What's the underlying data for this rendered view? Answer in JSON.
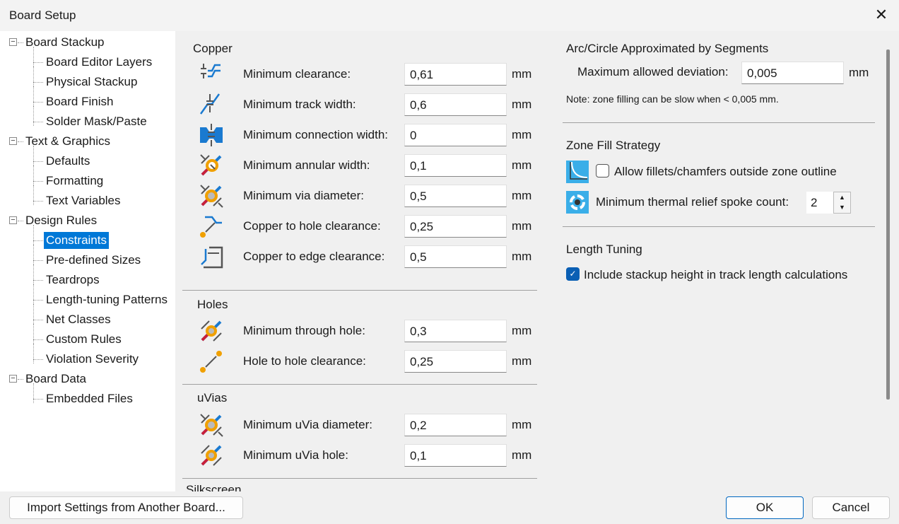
{
  "window": {
    "title": "Board Setup"
  },
  "tree": [
    {
      "label": "Board Stackup",
      "level": 0
    },
    {
      "label": "Board Editor Layers",
      "level": 1
    },
    {
      "label": "Physical Stackup",
      "level": 1
    },
    {
      "label": "Board Finish",
      "level": 1
    },
    {
      "label": "Solder Mask/Paste",
      "level": 1
    },
    {
      "label": "Text & Graphics",
      "level": 0
    },
    {
      "label": "Defaults",
      "level": 1
    },
    {
      "label": "Formatting",
      "level": 1
    },
    {
      "label": "Text Variables",
      "level": 1
    },
    {
      "label": "Design Rules",
      "level": 0
    },
    {
      "label": "Constraints",
      "level": 1,
      "selected": true
    },
    {
      "label": "Pre-defined Sizes",
      "level": 1
    },
    {
      "label": "Teardrops",
      "level": 1
    },
    {
      "label": "Length-tuning Patterns",
      "level": 1
    },
    {
      "label": "Net Classes",
      "level": 1
    },
    {
      "label": "Custom Rules",
      "level": 1
    },
    {
      "label": "Violation Severity",
      "level": 1
    },
    {
      "label": "Board Data",
      "level": 0
    },
    {
      "label": "Embedded Files",
      "level": 1
    }
  ],
  "copper": {
    "heading": "Copper",
    "rows": [
      {
        "icon": "clearance-icon",
        "label": "Minimum clearance:",
        "value": "0,61",
        "unit": "mm"
      },
      {
        "icon": "track-width-icon",
        "label": "Minimum track width:",
        "value": "0,6",
        "unit": "mm"
      },
      {
        "icon": "connection-width-icon",
        "label": "Minimum connection width:",
        "value": "0",
        "unit": "mm"
      },
      {
        "icon": "annular-width-icon",
        "label": "Minimum annular width:",
        "value": "0,1",
        "unit": "mm"
      },
      {
        "icon": "via-diameter-icon",
        "label": "Minimum via diameter:",
        "value": "0,5",
        "unit": "mm"
      },
      {
        "icon": "copper-hole-clearance-icon",
        "label": "Copper to hole clearance:",
        "value": "0,25",
        "unit": "mm"
      },
      {
        "icon": "edge-clearance-icon",
        "label": "Copper to edge clearance:",
        "value": "0,5",
        "unit": "mm"
      }
    ]
  },
  "holes": {
    "heading": "Holes",
    "rows": [
      {
        "icon": "through-hole-icon",
        "label": "Minimum through hole:",
        "value": "0,3",
        "unit": "mm"
      },
      {
        "icon": "hole-to-hole-icon",
        "label": "Hole to hole clearance:",
        "value": "0,25",
        "unit": "mm"
      }
    ]
  },
  "uvias": {
    "heading": "uVias",
    "rows": [
      {
        "icon": "uvia-diameter-icon",
        "label": "Minimum uVia diameter:",
        "value": "0,2",
        "unit": "mm"
      },
      {
        "icon": "uvia-hole-icon",
        "label": "Minimum uVia hole:",
        "value": "0,1",
        "unit": "mm"
      }
    ]
  },
  "silkscreen": {
    "heading": "Silkscreen"
  },
  "arc": {
    "heading": "Arc/Circle Approximated by Segments",
    "label": "Maximum allowed deviation:",
    "value": "0,005",
    "unit": "mm",
    "note": "Note: zone filling can be slow when < 0,005 mm."
  },
  "zone": {
    "heading": "Zone Fill Strategy",
    "fillets_label": "Allow fillets/chamfers outside zone outline",
    "fillets_checked": false,
    "spoke_label": "Minimum thermal relief spoke count:",
    "spoke_value": "2"
  },
  "length": {
    "heading": "Length Tuning",
    "stackup_label": "Include stackup height in track length calculations",
    "stackup_checked": true
  },
  "buttons": {
    "import": "Import Settings from Another Board...",
    "ok": "OK",
    "cancel": "Cancel"
  },
  "colors": {
    "accent": "#0078d7",
    "track": "#1a7ad0",
    "pad": "#f0a000",
    "red": "#c8203a"
  }
}
